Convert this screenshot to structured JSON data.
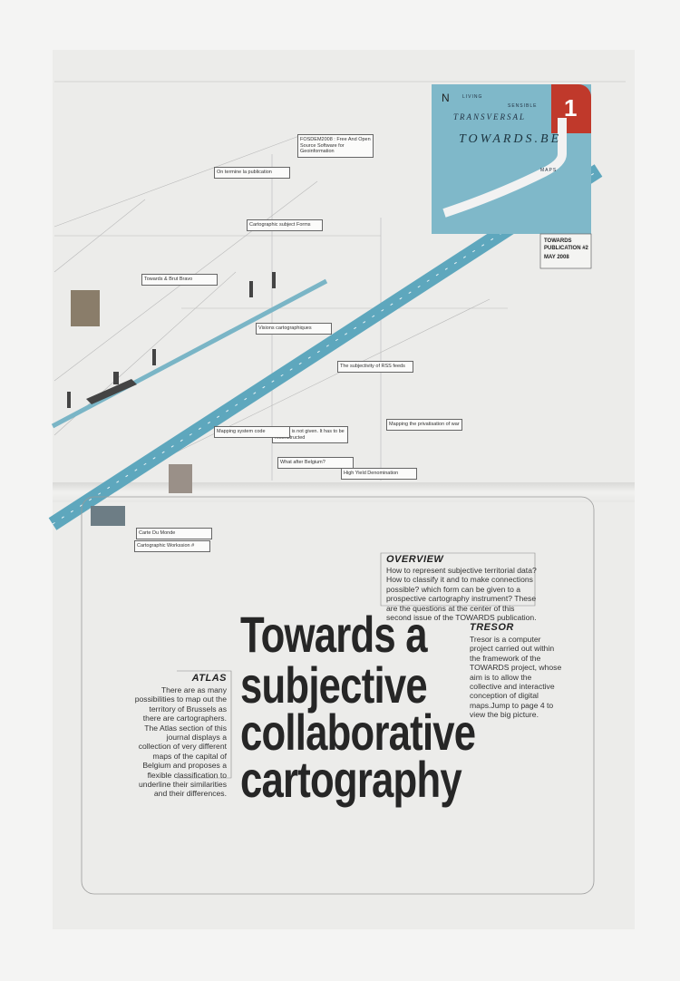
{
  "header": {
    "issue_number": "1",
    "masthead_words": [
      "LIVING",
      "SENSIBLE",
      "TRANSVERSAL"
    ],
    "masthead": "TOWARDS.BE",
    "maps_label": "MAPS",
    "publication": "TOWARDS PUBLICATION #2",
    "date": "MAY 2008"
  },
  "headline": [
    "Towards a",
    "subjective",
    "collaborative",
    "cartography"
  ],
  "overview": {
    "title": "OVERVIEW",
    "text": "How to represent subjective territorial data? How to classify it and to make connections possible? which form can be given to a prospective cartography instrument? These are the questions at the center of this second issue of the TOWARDS publication."
  },
  "tresor": {
    "title": "TRESOR",
    "text": "Tresor is a computer project carried out within the framework of the TOWARDS project, whose aim is to allow the collective and interactive conception of digital maps.Jump to page 4 to view the big picture."
  },
  "atlas": {
    "title": "ATLAS",
    "text": "There are as many possibilities to map out the territory of Brussels as there are cartographers. The Atlas section of this journal displays a collection of very different maps of the capital of Belgium and proposes a flexible classification to underline their similarities and their differences."
  },
  "map_notes": [
    "FOSDEM2008 : Free And Open Source Software for Geoinformation",
    "On termine la publication",
    "Cartographic subject Forms",
    "Towards & Brut Bravo",
    "Visions cartographiques",
    "The subjectivity of RSS feeds",
    "History is not given. It has to be reconstructed",
    "Mapping system code",
    "What after Belgium?",
    "Mapping the privatisation of war",
    "High Yield Denomination",
    "Carte Du Monde",
    "Cartographic Workssion #"
  ]
}
